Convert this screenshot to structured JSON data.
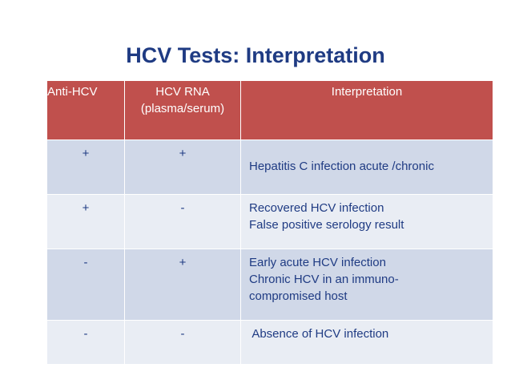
{
  "slide": {
    "title": "HCV Tests: Interpretation"
  },
  "table": {
    "headers": {
      "anti_hcv": "Anti-HCV",
      "hcv_rna_line1": "HCV RNA",
      "hcv_rna_line2": "(plasma/serum)",
      "interpretation": "Interpretation"
    },
    "rows": [
      {
        "anti_hcv": "+",
        "hcv_rna": "+",
        "lines": [
          "Hepatitis C infection acute /chronic"
        ]
      },
      {
        "anti_hcv": "+",
        "hcv_rna": "-",
        "lines": [
          "Recovered HCV infection",
          "False positive serology result"
        ]
      },
      {
        "anti_hcv": "-",
        "hcv_rna": "+",
        "lines": [
          "Early acute HCV infection",
          "Chronic HCV in an immuno-",
          "compromised host"
        ]
      },
      {
        "anti_hcv": "-",
        "hcv_rna": "-",
        "lines": [
          " Absence of HCV infection"
        ]
      }
    ]
  },
  "colors": {
    "title": "#1f3b83",
    "header_bg": "#c0504d",
    "row_dark": "#d0d8e8",
    "row_light": "#e9edf4"
  }
}
